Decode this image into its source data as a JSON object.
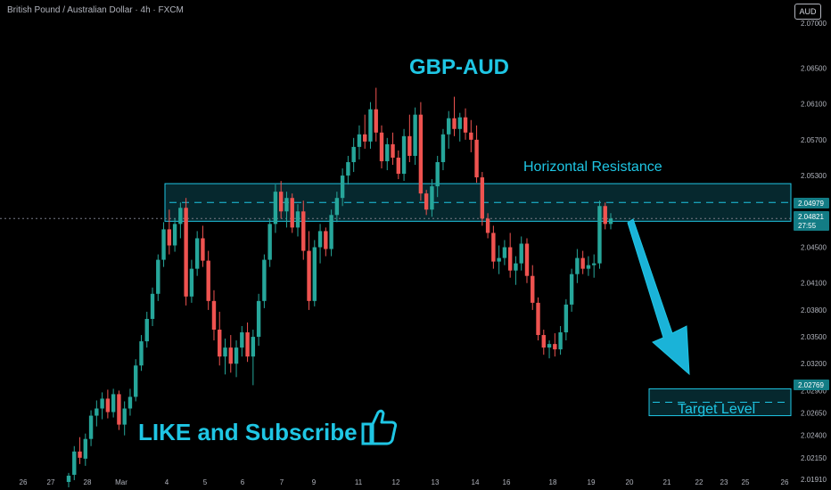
{
  "header": {
    "symbol": "British Pound / Australian Dollar · 4h · FXCM",
    "currency": "AUD"
  },
  "annotations": {
    "title": "GBP-AUD",
    "resistance_label": "Horizontal Resistance",
    "target_label": "Target Level",
    "cta": "LIKE and Subscribe"
  },
  "price_tags": {
    "zone_mid": "2.04979",
    "current": "2.04821",
    "countdown": "27:55",
    "target": "2.02769"
  },
  "colors": {
    "up": "#26a69a",
    "down": "#ef5350",
    "accent": "#1fc6e4",
    "background": "#000000"
  },
  "chart_data": {
    "type": "candlestick",
    "y_ticks": [
      "2.07000",
      "2.06500",
      "2.06100",
      "2.05700",
      "2.05300",
      "2.04979",
      "2.04821",
      "2.04500",
      "2.04100",
      "2.03800",
      "2.03500",
      "2.03200",
      "2.02900",
      "2.02769",
      "2.02650",
      "2.02400",
      "2.02150",
      "2.01910"
    ],
    "x_labels": [
      "26",
      "27",
      "28",
      "Mar",
      "4",
      "5",
      "6",
      "7",
      "9",
      "11",
      "12",
      "13",
      "14",
      "16",
      "18",
      "19",
      "20",
      "21",
      "22",
      "23",
      "25",
      "26"
    ],
    "ylim": [
      2.0183,
      2.0722
    ],
    "resistance_zone": [
      2.0479,
      2.0521
    ],
    "target_zone": [
      2.0262,
      2.0292
    ],
    "current_price": 2.04821,
    "candles": [
      [
        2.0188,
        2.0198,
        2.0182,
        2.0195
      ],
      [
        2.0196,
        2.0228,
        2.019,
        2.0222
      ],
      [
        2.0222,
        2.0238,
        2.0208,
        2.0215
      ],
      [
        2.0214,
        2.0242,
        2.0206,
        2.0236
      ],
      [
        2.0236,
        2.0268,
        2.0228,
        2.0262
      ],
      [
        2.0262,
        2.0279,
        2.025,
        2.027
      ],
      [
        2.027,
        2.0288,
        2.0258,
        2.0281
      ],
      [
        2.0281,
        2.0291,
        2.0259,
        2.0266
      ],
      [
        2.0266,
        2.0292,
        2.026,
        2.0286
      ],
      [
        2.0286,
        2.029,
        2.0246,
        2.0252
      ],
      [
        2.0252,
        2.0278,
        2.024,
        2.027
      ],
      [
        2.027,
        2.0292,
        2.0262,
        2.0283
      ],
      [
        2.0283,
        2.0325,
        2.0278,
        2.0318
      ],
      [
        2.0318,
        2.0352,
        2.0312,
        2.0345
      ],
      [
        2.0345,
        2.0378,
        2.0338,
        2.037
      ],
      [
        2.037,
        2.0405,
        2.0362,
        2.0398
      ],
      [
        2.0398,
        2.0442,
        2.039,
        2.0436
      ],
      [
        2.0436,
        2.0478,
        2.0428,
        2.047
      ],
      [
        2.047,
        2.0492,
        2.0442,
        2.0452
      ],
      [
        2.0452,
        2.0482,
        2.0445,
        2.0476
      ],
      [
        2.0476,
        2.05,
        2.046,
        2.0494
      ],
      [
        2.0494,
        2.0505,
        2.0385,
        2.0395
      ],
      [
        2.0395,
        2.0436,
        2.0388,
        2.0426
      ],
      [
        2.0426,
        2.0468,
        2.0418,
        2.046
      ],
      [
        2.046,
        2.0474,
        2.0428,
        2.0435
      ],
      [
        2.0435,
        2.0446,
        2.038,
        2.039
      ],
      [
        2.039,
        2.0402,
        2.0346,
        2.0358
      ],
      [
        2.0358,
        2.0378,
        2.0318,
        2.0328
      ],
      [
        2.0328,
        2.0348,
        2.0308,
        2.0338
      ],
      [
        2.0338,
        2.0352,
        2.031,
        2.032
      ],
      [
        2.032,
        2.0346,
        2.0305,
        2.0338
      ],
      [
        2.0338,
        2.0362,
        2.0328,
        2.0355
      ],
      [
        2.0355,
        2.0366,
        2.0322,
        2.0328
      ],
      [
        2.0328,
        2.0358,
        2.0296,
        2.035
      ],
      [
        2.035,
        2.0398,
        2.034,
        2.039
      ],
      [
        2.039,
        2.0442,
        2.0382,
        2.0436
      ],
      [
        2.0436,
        2.0482,
        2.0428,
        2.0476
      ],
      [
        2.0476,
        2.052,
        2.0466,
        2.0512
      ],
      [
        2.0512,
        2.0524,
        2.0482,
        2.049
      ],
      [
        2.049,
        2.0512,
        2.0472,
        2.0505
      ],
      [
        2.0505,
        2.051,
        2.0466,
        2.0472
      ],
      [
        2.0472,
        2.0498,
        2.0462,
        2.049
      ],
      [
        2.049,
        2.0502,
        2.0436,
        2.0446
      ],
      [
        2.0446,
        2.0468,
        2.038,
        2.039
      ],
      [
        2.039,
        2.0458,
        2.0384,
        2.045
      ],
      [
        2.045,
        2.0476,
        2.0432,
        2.0468
      ],
      [
        2.0468,
        2.0472,
        2.044,
        2.0448
      ],
      [
        2.0448,
        2.0492,
        2.044,
        2.0486
      ],
      [
        2.0486,
        2.0512,
        2.0478,
        2.0505
      ],
      [
        2.0505,
        2.0538,
        2.0496,
        2.053
      ],
      [
        2.053,
        2.0552,
        2.052,
        2.0545
      ],
      [
        2.0545,
        2.0572,
        2.0534,
        2.0562
      ],
      [
        2.0562,
        2.0586,
        2.0548,
        2.0576
      ],
      [
        2.0576,
        2.0598,
        2.056,
        2.0568
      ],
      [
        2.0568,
        2.0612,
        2.056,
        2.0604
      ],
      [
        2.0604,
        2.0628,
        2.0568,
        2.0578
      ],
      [
        2.0578,
        2.0586,
        2.0538,
        2.0546
      ],
      [
        2.0546,
        2.0572,
        2.0536,
        2.0565
      ],
      [
        2.0565,
        2.0578,
        2.0542,
        2.055
      ],
      [
        2.055,
        2.0558,
        2.0526,
        2.0532
      ],
      [
        2.0532,
        2.0582,
        2.0524,
        2.0574
      ],
      [
        2.0574,
        2.0598,
        2.0545,
        2.0552
      ],
      [
        2.0552,
        2.0606,
        2.0542,
        2.0598
      ],
      [
        2.0598,
        2.0612,
        2.0502,
        2.051
      ],
      [
        2.051,
        2.0514,
        2.0486,
        2.0492
      ],
      [
        2.0492,
        2.0526,
        2.0484,
        2.0518
      ],
      [
        2.0518,
        2.0552,
        2.0506,
        2.0545
      ],
      [
        2.0545,
        2.0582,
        2.0536,
        2.0576
      ],
      [
        2.0576,
        2.0602,
        2.056,
        2.0594
      ],
      [
        2.0594,
        2.0618,
        2.0574,
        2.0582
      ],
      [
        2.0582,
        2.06,
        2.0568,
        2.0595
      ],
      [
        2.0595,
        2.0605,
        2.057,
        2.0578
      ],
      [
        2.0578,
        2.0592,
        2.0556,
        2.057
      ],
      [
        2.057,
        2.0586,
        2.0522,
        2.0528
      ],
      [
        2.0528,
        2.0534,
        2.0474,
        2.0482
      ],
      [
        2.0482,
        2.0488,
        2.046,
        2.0466
      ],
      [
        2.0466,
        2.0474,
        2.0426,
        2.0434
      ],
      [
        2.0434,
        2.0452,
        2.042,
        2.0438
      ],
      [
        2.0438,
        2.0458,
        2.043,
        2.045
      ],
      [
        2.045,
        2.0466,
        2.0416,
        2.0424
      ],
      [
        2.0424,
        2.044,
        2.0408,
        2.0432
      ],
      [
        2.0432,
        2.0462,
        2.0424,
        2.0454
      ],
      [
        2.0454,
        2.046,
        2.041,
        2.0418
      ],
      [
        2.0418,
        2.043,
        2.038,
        2.0388
      ],
      [
        2.0388,
        2.0394,
        2.0346,
        2.0352
      ],
      [
        2.0352,
        2.0358,
        2.033,
        2.0338
      ],
      [
        2.0338,
        2.0346,
        2.0326,
        2.0342
      ],
      [
        2.0342,
        2.0354,
        2.0328,
        2.0336
      ],
      [
        2.0336,
        2.0362,
        2.033,
        2.0355
      ],
      [
        2.0355,
        2.0392,
        2.0346,
        2.0386
      ],
      [
        2.0386,
        2.0426,
        2.0378,
        2.042
      ],
      [
        2.042,
        2.0448,
        2.041,
        2.0438
      ],
      [
        2.0438,
        2.0446,
        2.042,
        2.0426
      ],
      [
        2.0426,
        2.044,
        2.0418,
        2.043
      ],
      [
        2.043,
        2.0442,
        2.0416,
        2.0432
      ],
      [
        2.0432,
        2.0502,
        2.0426,
        2.0496
      ],
      [
        2.0496,
        2.05,
        2.047,
        2.0476
      ],
      [
        2.0476,
        2.0488,
        2.047,
        2.0482
      ]
    ]
  }
}
